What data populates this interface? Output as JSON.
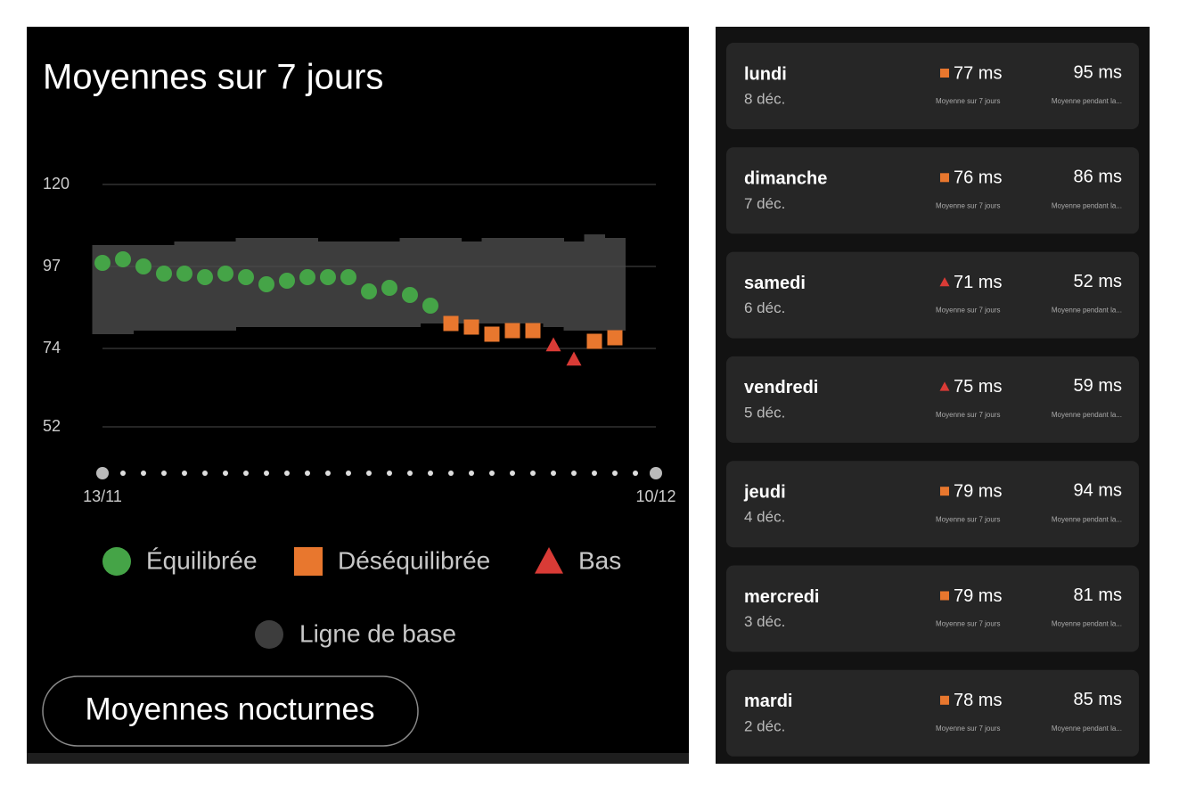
{
  "chart_data": {
    "type": "scatter",
    "title": "Moyennes sur 7 jours",
    "categories": [
      "13/11",
      null,
      null,
      null,
      null,
      null,
      null,
      null,
      null,
      null,
      null,
      null,
      null,
      null,
      null,
      null,
      null,
      null,
      null,
      null,
      null,
      null,
      null,
      null,
      null,
      null,
      null,
      "10/12"
    ],
    "ylim": [
      46,
      124
    ],
    "yticks": [
      120,
      97,
      74,
      52
    ],
    "grid": true,
    "series": [
      {
        "name": "Équilibrée",
        "color": "#45a447",
        "marker": "circle",
        "values": [
          98,
          99,
          97,
          95,
          95,
          94,
          95,
          94,
          92,
          93,
          94,
          94,
          94,
          90,
          91,
          89,
          86,
          null,
          null,
          null,
          null,
          null,
          null,
          null,
          null,
          null,
          null,
          null
        ]
      },
      {
        "name": "Déséquilibrée",
        "color": "#e8772e",
        "marker": "square",
        "values": [
          null,
          null,
          null,
          null,
          null,
          null,
          null,
          null,
          null,
          null,
          null,
          null,
          null,
          null,
          null,
          null,
          null,
          81,
          80,
          78,
          79,
          79,
          null,
          null,
          76,
          77,
          null,
          null
        ]
      },
      {
        "name": "Bas",
        "color": "#d93b36",
        "marker": "triangle",
        "values": [
          null,
          null,
          null,
          null,
          null,
          null,
          null,
          null,
          null,
          null,
          null,
          null,
          null,
          null,
          null,
          null,
          null,
          null,
          null,
          null,
          null,
          null,
          75,
          71,
          null,
          null,
          null,
          null
        ]
      }
    ],
    "band": {
      "name": "Ligne de base",
      "color": "#3d3d3d",
      "lower": [
        78,
        78,
        79,
        79,
        79,
        79,
        79,
        80,
        80,
        80,
        80,
        80,
        80,
        80,
        80,
        80,
        81,
        81,
        81,
        81,
        81,
        81,
        80,
        79,
        79,
        79,
        null,
        null
      ],
      "upper": [
        103,
        103,
        103,
        103,
        104,
        104,
        104,
        105,
        105,
        105,
        105,
        104,
        104,
        104,
        104,
        105,
        105,
        105,
        104,
        105,
        105,
        105,
        105,
        104,
        106,
        105,
        null,
        null
      ]
    },
    "button": "Moyennes nocturnes"
  },
  "list": [
    {
      "day": "lundi",
      "date": "8 déc.",
      "avg7": "77 ms",
      "marker": "square",
      "avg7_caption": "Moyenne sur 7 jours",
      "night": "95 ms",
      "night_caption": "Moyenne pendant la..."
    },
    {
      "day": "dimanche",
      "date": "7 déc.",
      "avg7": "76 ms",
      "marker": "square",
      "avg7_caption": "Moyenne sur 7 jours",
      "night": "86 ms",
      "night_caption": "Moyenne pendant la..."
    },
    {
      "day": "samedi",
      "date": "6 déc.",
      "avg7": "71 ms",
      "marker": "triangle",
      "avg7_caption": "Moyenne sur 7 jours",
      "night": "52 ms",
      "night_caption": "Moyenne pendant la..."
    },
    {
      "day": "vendredi",
      "date": "5 déc.",
      "avg7": "75 ms",
      "marker": "triangle",
      "avg7_caption": "Moyenne sur 7 jours",
      "night": "59 ms",
      "night_caption": "Moyenne pendant la..."
    },
    {
      "day": "jeudi",
      "date": "4 déc.",
      "avg7": "79 ms",
      "marker": "square",
      "avg7_caption": "Moyenne sur 7 jours",
      "night": "94 ms",
      "night_caption": "Moyenne pendant la..."
    },
    {
      "day": "mercredi",
      "date": "3 déc.",
      "avg7": "79 ms",
      "marker": "square",
      "avg7_caption": "Moyenne sur 7 jours",
      "night": "81 ms",
      "night_caption": "Moyenne pendant la..."
    },
    {
      "day": "mardi",
      "date": "2 déc.",
      "avg7": "78 ms",
      "marker": "square",
      "avg7_caption": "Moyenne sur 7 jours",
      "night": "85 ms",
      "night_caption": "Moyenne pendant la..."
    }
  ]
}
